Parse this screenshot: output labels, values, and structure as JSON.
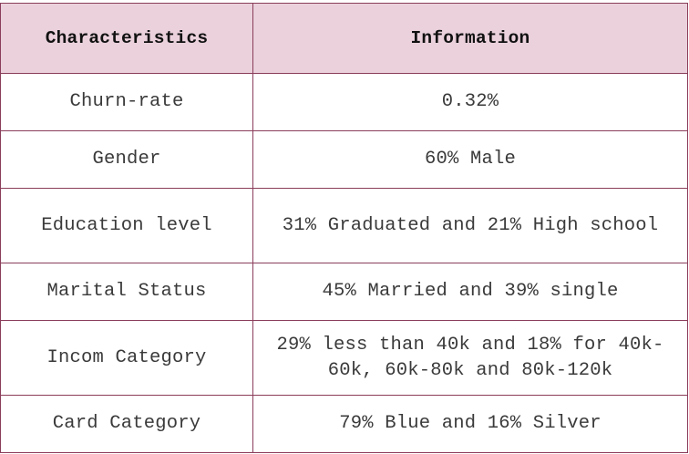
{
  "table": {
    "headers": [
      "Characteristics",
      "Information"
    ],
    "rows": [
      [
        "Churn-rate",
        "0.32%"
      ],
      [
        "Gender",
        "60% Male"
      ],
      [
        "Education level",
        "31% Graduated and 21% High school"
      ],
      [
        "Marital Status",
        "45% Married and 39% single"
      ],
      [
        "Incom Category",
        "29% less than 40k and 18% for 40k-60k, 60k-80k and 80k-120k"
      ],
      [
        "Card Category",
        "79% Blue and 16% Silver"
      ]
    ]
  },
  "colors": {
    "header_bg": "#ead1dc",
    "border": "#8a3d5a"
  }
}
